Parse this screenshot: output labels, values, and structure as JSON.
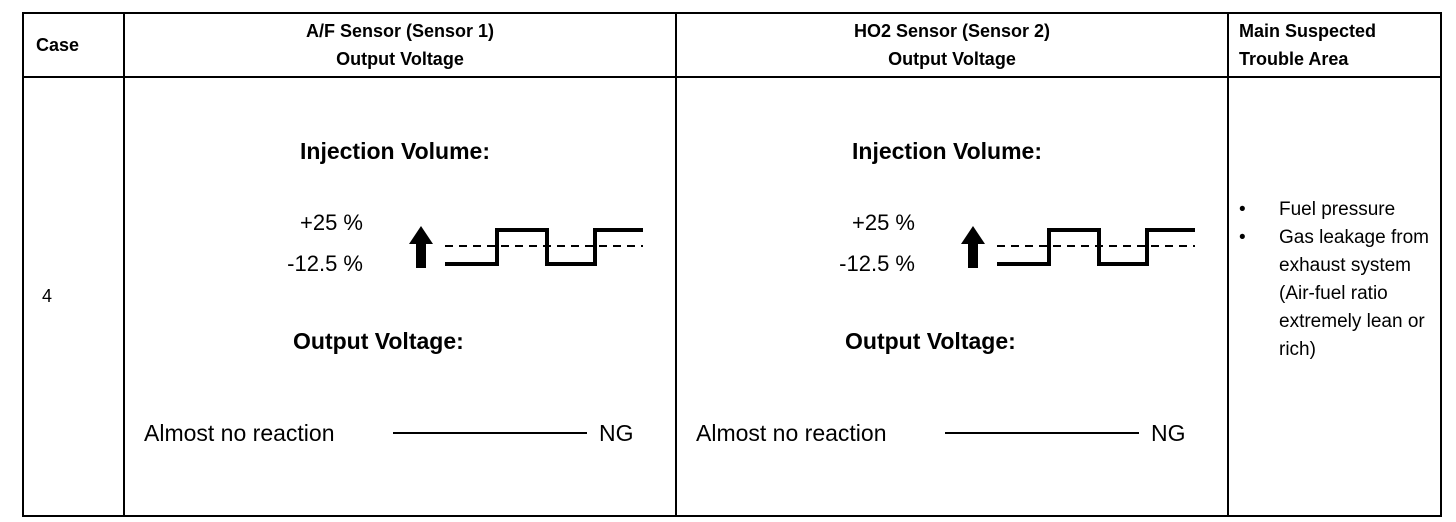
{
  "headers": {
    "case": "Case",
    "af_sensor": [
      "A/F Sensor (Sensor 1)",
      "Output Voltage"
    ],
    "ho2_sensor": [
      "HO2 Sensor (Sensor 2)",
      "Output Voltage"
    ],
    "trouble_area": [
      "Main Suspected",
      "Trouble Area"
    ]
  },
  "row": {
    "case_number": "4",
    "af": {
      "injection_label": "Injection Volume:",
      "high_pct": "+25 %",
      "low_pct": "-12.5 %",
      "output_label": "Output Voltage:",
      "reaction_text": "Almost no reaction",
      "result": "NG"
    },
    "ho2": {
      "injection_label": "Injection Volume:",
      "high_pct": "+25 %",
      "low_pct": "-12.5 %",
      "output_label": "Output Voltage:",
      "reaction_text": "Almost no reaction",
      "result": "NG"
    },
    "trouble_area": {
      "bullet": "•",
      "items": [
        "Fuel pressure",
        "Gas leakage from exhaust system (Air-fuel ratio extremely lean or rich)"
      ]
    }
  }
}
